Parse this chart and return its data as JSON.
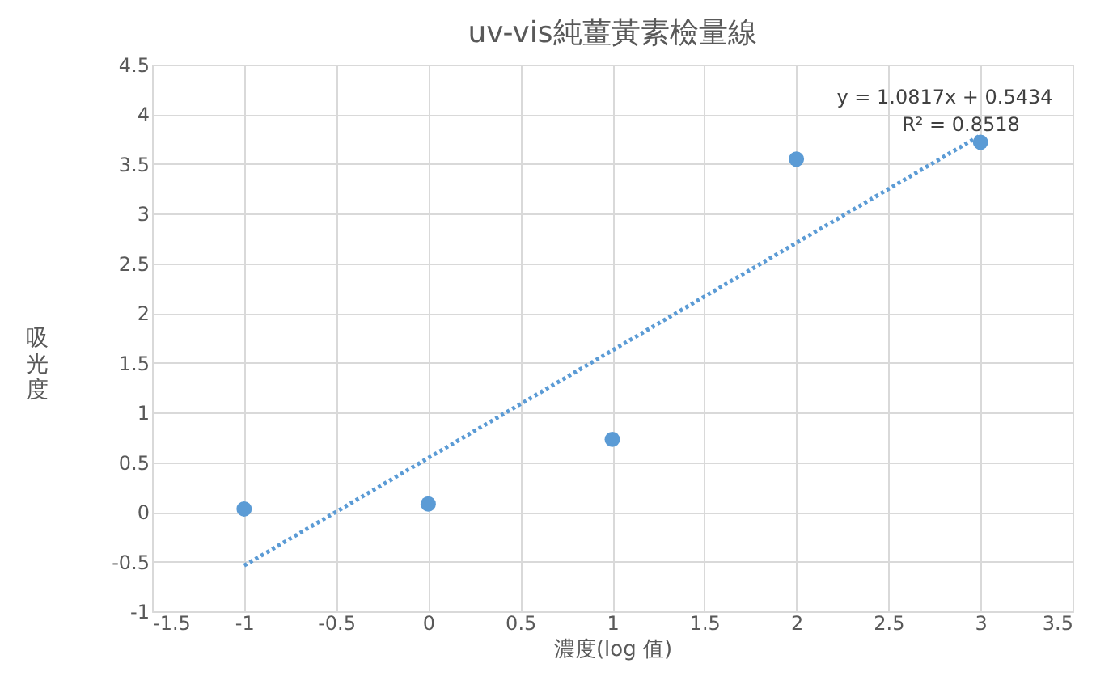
{
  "chart_data": {
    "type": "scatter",
    "title": "uv-vis純薑黃素檢量線",
    "xlabel": "濃度(log 值)",
    "ylabel": "吸光度",
    "x": [
      -1,
      0,
      1,
      2,
      3
    ],
    "series": [
      {
        "color": "#5b9bd5",
        "marker": "circle",
        "values": [
          0.03,
          0.08,
          0.73,
          3.55,
          3.72
        ]
      },
      {
        "type": "line",
        "color": "#5b9bd5",
        "line_style": "dotted",
        "x": [
          -1,
          3
        ],
        "values": [
          -0.54,
          3.79
        ]
      }
    ],
    "annotations": [
      "y = 1.0817x + 0.5434",
      "R² = 0.8518"
    ],
    "xlim": [
      -1.5,
      3.5
    ],
    "xticks": [
      -1.5,
      -1,
      -0.5,
      0,
      0.5,
      1,
      1.5,
      2,
      2.5,
      3,
      3.5
    ],
    "ylim": [
      -1,
      4.5
    ],
    "yticks": [
      -1,
      -0.5,
      0,
      0.5,
      1,
      1.5,
      2,
      2.5,
      3,
      3.5,
      4,
      4.5
    ],
    "grid": true
  }
}
